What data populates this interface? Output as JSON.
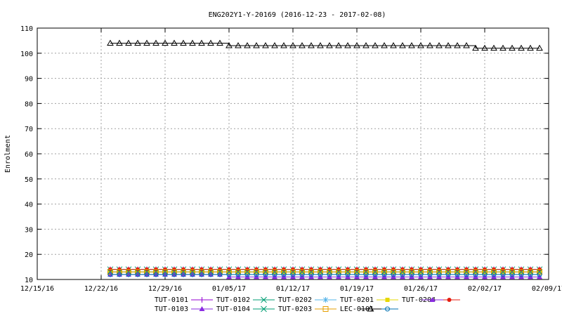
{
  "chart_data": {
    "type": "line",
    "title": "ENG202Y1-Y-20169 (2016-12-23 - 2017-02-08)",
    "xlabel": "",
    "ylabel": "Enrolment",
    "ylim": [
      10,
      110
    ],
    "xlim": [
      "2016-12-15",
      "2017-02-09"
    ],
    "yticks": [
      10,
      20,
      30,
      40,
      50,
      60,
      70,
      80,
      90,
      100,
      110
    ],
    "xticks": [
      {
        "date": "2016-12-15",
        "label": "12/15/16"
      },
      {
        "date": "2016-12-22",
        "label": "12/22/16"
      },
      {
        "date": "2016-12-29",
        "label": "12/29/16"
      },
      {
        "date": "2017-01-05",
        "label": "01/05/17"
      },
      {
        "date": "2017-01-12",
        "label": "01/12/17"
      },
      {
        "date": "2017-01-19",
        "label": "01/19/17"
      },
      {
        "date": "2017-01-26",
        "label": "01/26/17"
      },
      {
        "date": "2017-02-02",
        "label": "02/02/17"
      },
      {
        "date": "2017-02-09",
        "label": "02/09/17"
      }
    ],
    "grid": true,
    "legend_position": "bottom",
    "x_dates": [
      "2016-12-23",
      "2016-12-24",
      "2016-12-25",
      "2016-12-26",
      "2016-12-27",
      "2016-12-28",
      "2016-12-29",
      "2016-12-30",
      "2016-12-31",
      "2017-01-01",
      "2017-01-02",
      "2017-01-03",
      "2017-01-04",
      "2017-01-05",
      "2017-01-06",
      "2017-01-07",
      "2017-01-08",
      "2017-01-09",
      "2017-01-10",
      "2017-01-11",
      "2017-01-12",
      "2017-01-13",
      "2017-01-14",
      "2017-01-15",
      "2017-01-16",
      "2017-01-17",
      "2017-01-18",
      "2017-01-19",
      "2017-01-20",
      "2017-01-21",
      "2017-01-22",
      "2017-01-23",
      "2017-01-24",
      "2017-01-25",
      "2017-01-26",
      "2017-01-27",
      "2017-01-28",
      "2017-01-29",
      "2017-01-30",
      "2017-01-31",
      "2017-02-01",
      "2017-02-02",
      "2017-02-03",
      "2017-02-04",
      "2017-02-05",
      "2017-02-06",
      "2017-02-07",
      "2017-02-08"
    ],
    "series": [
      {
        "name": "TUT-0101",
        "color": "#9400d3",
        "marker": "plus",
        "segments": [
          {
            "value": 14
          }
        ]
      },
      {
        "name": "TUT-0102",
        "color": "#009e73",
        "marker": "cross",
        "segments": [
          {
            "value": 14
          }
        ]
      },
      {
        "name": "TUT-0202",
        "color": "#56b4e9",
        "marker": "asterisk",
        "segments": [
          {
            "value": 12
          }
        ]
      },
      {
        "name": "TUT-0201",
        "color": "#e6d800",
        "marker": "filled-square",
        "segments": [
          {
            "value": 13
          }
        ]
      },
      {
        "name": "TUT-0204",
        "color": "#e51e10",
        "marker": "filled-circle",
        "segments": [
          {
            "value": 14
          }
        ]
      },
      {
        "name": "TUT-0103",
        "color": "#8a2be2",
        "marker": "filled-triangle",
        "segments": [
          {
            "value": 12,
            "until": "2017-01-04"
          },
          {
            "value": 11,
            "until": "2017-02-08"
          }
        ]
      },
      {
        "name": "TUT-0104",
        "color": "#009e73",
        "marker": "cross",
        "segments": [
          {
            "value": 13
          }
        ]
      },
      {
        "name": "TUT-0203",
        "color": "#e69f00",
        "marker": "open-square",
        "segments": [
          {
            "value": 13
          }
        ]
      },
      {
        "name": "LEC-0101",
        "color": "#0072b2",
        "marker": "open-circle",
        "segments": [
          {
            "value": 12
          }
        ]
      },
      {
        "name": "",
        "color": "#000000",
        "marker": "open-triangle",
        "segments": [
          {
            "value": 104,
            "until": "2017-01-04"
          },
          {
            "value": 103,
            "until": "2017-01-31"
          },
          {
            "value": 102,
            "until": "2017-02-08"
          }
        ]
      }
    ]
  },
  "legend": {
    "rows": [
      [
        "TUT-0101",
        "TUT-0102",
        "TUT-0202",
        "TUT-0201",
        "TUT-0204"
      ],
      [
        "TUT-0103",
        "TUT-0104",
        "TUT-0203",
        "LEC-0101"
      ]
    ]
  }
}
